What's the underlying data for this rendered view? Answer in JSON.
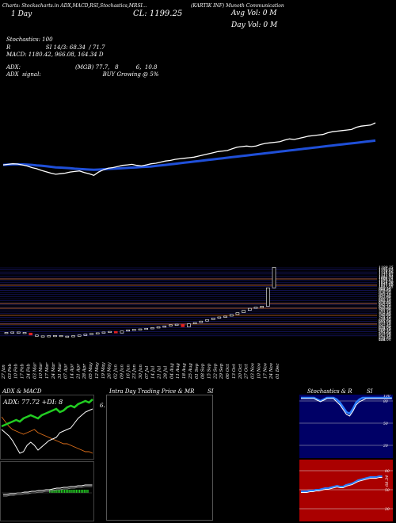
{
  "header": {
    "top_strip": "Charts: Stockscharts.in ADX,MACD,RSI,Stochastics,MRSI...",
    "line1_right": "(KARTIK INF) Munoth Communication",
    "day_text": "1 Day",
    "close_text": "CL: 1199.25",
    "avg_vol": "Avg Vol: 0  M",
    "day_vol": "Day Vol: 0  M"
  },
  "indicators": {
    "stoch": "Stochastics: 100",
    "rsi": "R                    SI 14/3: 68.34  / 71.7",
    "macd": "MACD: 1180.42,  966.08,  164.34  D",
    "adx": "ADX:                               (MGB) 77.7,   8          6,  10.8",
    "signal": "ADX  signal:                                   BUY Growing @ 5%"
  },
  "price_chart": {
    "x": [
      0,
      1,
      2,
      3,
      4,
      5,
      6,
      7,
      8,
      9,
      10,
      11,
      12,
      13,
      14,
      15,
      16,
      17,
      18,
      19,
      20,
      21,
      22,
      23,
      24,
      25,
      26,
      27,
      28,
      29,
      30,
      31,
      32,
      33,
      34,
      35,
      36,
      37,
      38,
      39,
      40,
      41,
      42,
      43,
      44,
      45,
      46,
      47,
      48,
      49,
      50,
      51,
      52,
      53,
      54,
      55,
      56,
      57,
      58,
      59,
      60,
      61,
      62,
      63,
      64,
      65,
      66,
      67,
      68,
      69,
      70,
      71,
      72,
      73,
      74,
      75,
      76,
      77,
      78
    ],
    "price": [
      60,
      62,
      64,
      63,
      60,
      56,
      50,
      46,
      40,
      35,
      30,
      26,
      28,
      30,
      34,
      36,
      38,
      32,
      28,
      22,
      34,
      42,
      48,
      50,
      54,
      58,
      60,
      62,
      58,
      56,
      60,
      64,
      66,
      70,
      74,
      76,
      80,
      82,
      84,
      86,
      88,
      92,
      96,
      100,
      104,
      108,
      110,
      112,
      118,
      124,
      126,
      128,
      126,
      128,
      134,
      138,
      140,
      142,
      144,
      150,
      154,
      152,
      156,
      160,
      164,
      166,
      168,
      170,
      176,
      180,
      182,
      184,
      186,
      188,
      196,
      200,
      202,
      204,
      212
    ],
    "ema": [
      60,
      61,
      62,
      62,
      62,
      61,
      60,
      58,
      57,
      55,
      53,
      51,
      50,
      49,
      48,
      46,
      45,
      44,
      43,
      42,
      43,
      44,
      45,
      46,
      47,
      48,
      49,
      50,
      51,
      52,
      53,
      54,
      56,
      58,
      60,
      62,
      64,
      66,
      68,
      70,
      72,
      74,
      76,
      78,
      80,
      82,
      84,
      86,
      88,
      90,
      92,
      94,
      96,
      98,
      100,
      102,
      104,
      106,
      108,
      110,
      112,
      114,
      116,
      118,
      120,
      122,
      124,
      126,
      128,
      130,
      132,
      134,
      136,
      138,
      140,
      142,
      144,
      146,
      148
    ]
  },
  "daily_chart": {
    "levels": [
      "1199.25",
      "1185.21",
      "1170.67",
      "1156.36",
      "1141.87",
      "1127.03",
      "1112.91",
      "1098.72",
      "1084.61",
      "1070.45",
      "1056.20",
      "1041.95",
      "1027.60",
      "1013.35",
      "999.10",
      "984.85",
      "970.60",
      "956.35",
      "942.10",
      "927.85",
      "913.60",
      "899.35",
      "885.10",
      "870.85",
      "856.60",
      "842.35",
      "828.10",
      "813.85",
      "799.60",
      "785.35",
      "771.10",
      "756.85",
      "742.60",
      "728.35",
      "714.10",
      "699.85",
      "685.60",
      "671.35",
      "657.10",
      "642.85",
      "628.60",
      "614.35",
      "600.10",
      "585.85",
      "571.60",
      "557.35",
      "543.10",
      "528.85",
      "514.60",
      "506",
      "506.09"
    ],
    "date_labels": [
      "27 Jan",
      "03 Feb",
      "10 Feb",
      "17 Feb",
      "24 Feb",
      "03 Mar",
      "10 Mar",
      "17 Mar",
      "24 Mar",
      "31 Mar",
      "07 Apr",
      "14 Apr",
      "21 Apr",
      "28 Apr",
      "05 May",
      "12 May",
      "19 May",
      "26 May",
      "02 Jun",
      "09 Jun",
      "16 Jun",
      "23 Jun",
      "30 Jun",
      "07 Jul",
      "14 Jul",
      "21 Jul",
      "28 Jul",
      "04 Aug",
      "11 Aug",
      "18 Aug",
      "25 Aug",
      "01 Sep",
      "08 Sep",
      "15 Sep",
      "22 Sep",
      "29 Sep",
      "06 Oct",
      "13 Oct",
      "20 Oct",
      "27 Oct",
      "03 Nov",
      "10 Nov",
      "17 Nov",
      "24 Nov",
      "01 Dec"
    ],
    "candles": [
      {
        "o": 560,
        "c": 566,
        "dir": "up"
      },
      {
        "o": 566,
        "c": 570,
        "dir": "up"
      },
      {
        "o": 570,
        "c": 566,
        "dir": "up"
      },
      {
        "o": 566,
        "c": 560,
        "dir": "up"
      },
      {
        "o": 560,
        "c": 540,
        "dir": "down"
      },
      {
        "o": 540,
        "c": 532,
        "dir": "up"
      },
      {
        "o": 532,
        "c": 528,
        "dir": "up"
      },
      {
        "o": 528,
        "c": 534,
        "dir": "up"
      },
      {
        "o": 534,
        "c": 536,
        "dir": "up"
      },
      {
        "o": 536,
        "c": 530,
        "dir": "up"
      },
      {
        "o": 530,
        "c": 528,
        "dir": "up"
      },
      {
        "o": 528,
        "c": 534,
        "dir": "up"
      },
      {
        "o": 534,
        "c": 540,
        "dir": "up"
      },
      {
        "o": 540,
        "c": 548,
        "dir": "up"
      },
      {
        "o": 548,
        "c": 556,
        "dir": "up"
      },
      {
        "o": 556,
        "c": 562,
        "dir": "up"
      },
      {
        "o": 562,
        "c": 570,
        "dir": "up"
      },
      {
        "o": 570,
        "c": 576,
        "dir": "up"
      },
      {
        "o": 576,
        "c": 560,
        "dir": "down"
      },
      {
        "o": 560,
        "c": 580,
        "dir": "up"
      },
      {
        "o": 580,
        "c": 590,
        "dir": "up"
      },
      {
        "o": 590,
        "c": 596,
        "dir": "up"
      },
      {
        "o": 596,
        "c": 600,
        "dir": "up"
      },
      {
        "o": 600,
        "c": 606,
        "dir": "up"
      },
      {
        "o": 606,
        "c": 612,
        "dir": "up"
      },
      {
        "o": 612,
        "c": 620,
        "dir": "up"
      },
      {
        "o": 620,
        "c": 628,
        "dir": "up"
      },
      {
        "o": 628,
        "c": 640,
        "dir": "up"
      },
      {
        "o": 640,
        "c": 646,
        "dir": "up"
      },
      {
        "o": 646,
        "c": 620,
        "dir": "down"
      },
      {
        "o": 620,
        "c": 650,
        "dir": "up"
      },
      {
        "o": 650,
        "c": 662,
        "dir": "up"
      },
      {
        "o": 662,
        "c": 676,
        "dir": "up"
      },
      {
        "o": 676,
        "c": 690,
        "dir": "up"
      },
      {
        "o": 690,
        "c": 706,
        "dir": "up"
      },
      {
        "o": 706,
        "c": 716,
        "dir": "up"
      },
      {
        "o": 716,
        "c": 724,
        "dir": "up"
      },
      {
        "o": 724,
        "c": 740,
        "dir": "up"
      },
      {
        "o": 740,
        "c": 758,
        "dir": "up"
      },
      {
        "o": 758,
        "c": 780,
        "dir": "up"
      },
      {
        "o": 780,
        "c": 800,
        "dir": "up"
      },
      {
        "o": 800,
        "c": 812,
        "dir": "up"
      },
      {
        "o": 812,
        "c": 820,
        "dir": "up"
      },
      {
        "o": 820,
        "c": 1000,
        "dir": "up"
      },
      {
        "o": 1000,
        "c": 1199,
        "dir": "up"
      }
    ]
  },
  "panels": {
    "adx_title": "ADX  & MACD",
    "adx_label": "ADX: 77.72  +DI: 8",
    "intra_title": "Intra  Day Trading Price  & MR",
    "intra_si": "SI",
    "intra_small": "6.",
    "stoch_title": "Stochastics & R",
    "stoch_si": "SI",
    "stoch_ticks": [
      "100",
      "80",
      "50",
      "20"
    ],
    "rsi_ticks": [
      "80",
      "50",
      "20"
    ],
    "rsi_value": "68.34"
  },
  "colors": {
    "ema": "#1f4fd8",
    "price": "#ffffff",
    "up_candle": "#ffffff",
    "down_candle": "#e02020",
    "adx_green": "#22cc22",
    "adx_orange": "#e0701a",
    "rsi_bg": "#aa0000",
    "stoch_bg": "#000066"
  }
}
